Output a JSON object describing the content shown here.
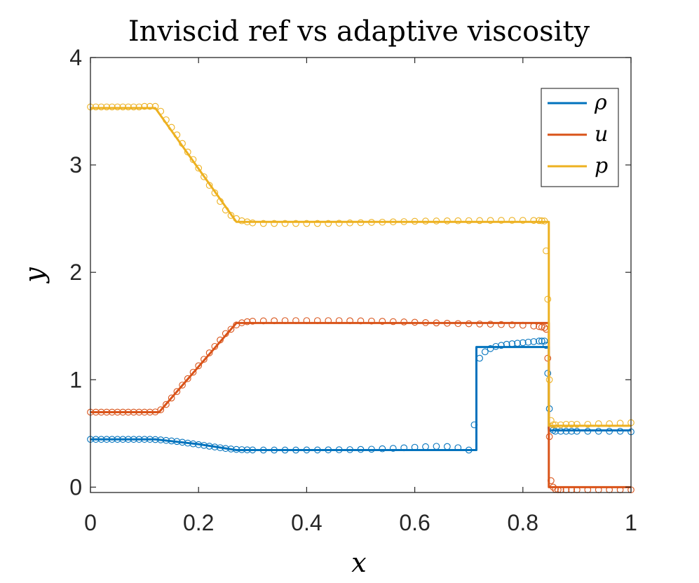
{
  "chart_data": {
    "type": "line",
    "title": "Inviscid ref vs adaptive viscosity",
    "xlabel": "x",
    "ylabel": "y",
    "xlim": [
      0,
      1
    ],
    "ylim": [
      -0.05,
      4
    ],
    "xticks": [
      0,
      0.2,
      0.4,
      0.6,
      0.8,
      1
    ],
    "xtick_labels": [
      "0",
      "0.2",
      "0.4",
      "0.6",
      "0.8",
      "1"
    ],
    "yticks": [
      0,
      1,
      2,
      3,
      4
    ],
    "ytick_labels": [
      "0",
      "1",
      "2",
      "3",
      "4"
    ],
    "grid": false,
    "box": true,
    "legend_position": "top-right",
    "series": [
      {
        "name": "ρ",
        "color": "#0072BD",
        "reference_line": {
          "x": [
            0,
            0.12,
            0.2,
            0.27,
            0.714,
            0.714,
            0.848,
            0.848,
            1
          ],
          "y": [
            0.445,
            0.445,
            0.4,
            0.345,
            0.345,
            1.305,
            1.305,
            0.528,
            0.528
          ]
        },
        "markers": {
          "x": [
            0,
            0.01,
            0.02,
            0.03,
            0.04,
            0.05,
            0.06,
            0.07,
            0.08,
            0.09,
            0.1,
            0.11,
            0.12,
            0.13,
            0.14,
            0.15,
            0.16,
            0.17,
            0.18,
            0.19,
            0.2,
            0.21,
            0.22,
            0.23,
            0.24,
            0.25,
            0.26,
            0.27,
            0.28,
            0.29,
            0.3,
            0.32,
            0.34,
            0.36,
            0.38,
            0.4,
            0.42,
            0.44,
            0.46,
            0.48,
            0.5,
            0.52,
            0.54,
            0.56,
            0.58,
            0.6,
            0.62,
            0.64,
            0.66,
            0.68,
            0.7,
            0.71,
            0.72,
            0.73,
            0.74,
            0.75,
            0.76,
            0.77,
            0.78,
            0.79,
            0.8,
            0.81,
            0.82,
            0.83,
            0.835,
            0.84,
            0.843,
            0.846,
            0.849,
            0.852,
            0.856,
            0.86,
            0.87,
            0.88,
            0.89,
            0.9,
            0.92,
            0.94,
            0.96,
            0.98,
            1
          ],
          "y": [
            0.445,
            0.445,
            0.445,
            0.445,
            0.445,
            0.445,
            0.445,
            0.445,
            0.445,
            0.445,
            0.445,
            0.445,
            0.443,
            0.44,
            0.435,
            0.43,
            0.425,
            0.418,
            0.41,
            0.403,
            0.396,
            0.389,
            0.381,
            0.374,
            0.367,
            0.36,
            0.355,
            0.351,
            0.349,
            0.347,
            0.346,
            0.345,
            0.345,
            0.345,
            0.345,
            0.346,
            0.346,
            0.347,
            0.348,
            0.349,
            0.351,
            0.353,
            0.357,
            0.361,
            0.366,
            0.371,
            0.376,
            0.38,
            0.378,
            0.367,
            0.345,
            0.58,
            1.2,
            1.26,
            1.29,
            1.31,
            1.32,
            1.33,
            1.335,
            1.34,
            1.345,
            1.35,
            1.355,
            1.36,
            1.36,
            1.36,
            1.32,
            1.06,
            0.73,
            0.55,
            0.53,
            0.52,
            0.52,
            0.52,
            0.52,
            0.52,
            0.52,
            0.52,
            0.52,
            0.52,
            0.515
          ]
        }
      },
      {
        "name": "u",
        "color": "#D95319",
        "reference_line": {
          "x": [
            0,
            0.127,
            0.27,
            0.848,
            0.848,
            1
          ],
          "y": [
            0.698,
            0.698,
            1.528,
            1.528,
            0,
            0
          ]
        },
        "markers": {
          "x": [
            0,
            0.01,
            0.02,
            0.03,
            0.04,
            0.05,
            0.06,
            0.07,
            0.08,
            0.09,
            0.1,
            0.11,
            0.12,
            0.13,
            0.14,
            0.15,
            0.16,
            0.17,
            0.18,
            0.19,
            0.2,
            0.21,
            0.22,
            0.23,
            0.24,
            0.25,
            0.26,
            0.27,
            0.28,
            0.29,
            0.3,
            0.32,
            0.34,
            0.36,
            0.38,
            0.4,
            0.42,
            0.44,
            0.46,
            0.48,
            0.5,
            0.52,
            0.54,
            0.56,
            0.58,
            0.6,
            0.62,
            0.64,
            0.66,
            0.68,
            0.7,
            0.72,
            0.74,
            0.76,
            0.78,
            0.8,
            0.82,
            0.83,
            0.835,
            0.84,
            0.843,
            0.846,
            0.849,
            0.852,
            0.856,
            0.86,
            0.865,
            0.87,
            0.88,
            0.89,
            0.9,
            0.92,
            0.94,
            0.96,
            0.98,
            1
          ],
          "y": [
            0.698,
            0.698,
            0.698,
            0.698,
            0.698,
            0.698,
            0.698,
            0.698,
            0.698,
            0.698,
            0.698,
            0.698,
            0.7,
            0.72,
            0.77,
            0.83,
            0.89,
            0.95,
            1.01,
            1.07,
            1.13,
            1.19,
            1.25,
            1.31,
            1.37,
            1.43,
            1.47,
            1.51,
            1.53,
            1.54,
            1.545,
            1.548,
            1.549,
            1.55,
            1.55,
            1.55,
            1.55,
            1.55,
            1.55,
            1.549,
            1.548,
            1.546,
            1.544,
            1.541,
            1.538,
            1.535,
            1.532,
            1.529,
            1.526,
            1.523,
            1.521,
            1.519,
            1.517,
            1.514,
            1.511,
            1.507,
            1.5,
            1.495,
            1.49,
            1.485,
            1.47,
            1.2,
            0.47,
            0.06,
            0.0,
            -0.02,
            -0.025,
            -0.025,
            -0.025,
            -0.025,
            -0.025,
            -0.025,
            -0.025,
            -0.025,
            -0.025,
            -0.025
          ]
        }
      },
      {
        "name": "p",
        "color": "#EDB120",
        "reference_line": {
          "x": [
            0,
            0.12,
            0.27,
            0.848,
            0.848,
            1
          ],
          "y": [
            3.53,
            3.53,
            2.47,
            2.47,
            0.571,
            0.571
          ]
        },
        "markers": {
          "x": [
            0,
            0.01,
            0.02,
            0.03,
            0.04,
            0.05,
            0.06,
            0.07,
            0.08,
            0.09,
            0.1,
            0.11,
            0.12,
            0.13,
            0.14,
            0.15,
            0.16,
            0.17,
            0.18,
            0.19,
            0.2,
            0.21,
            0.22,
            0.23,
            0.24,
            0.25,
            0.26,
            0.27,
            0.28,
            0.29,
            0.3,
            0.32,
            0.34,
            0.36,
            0.38,
            0.4,
            0.42,
            0.44,
            0.46,
            0.48,
            0.5,
            0.52,
            0.54,
            0.56,
            0.58,
            0.6,
            0.62,
            0.64,
            0.66,
            0.68,
            0.7,
            0.72,
            0.74,
            0.76,
            0.78,
            0.8,
            0.82,
            0.83,
            0.835,
            0.84,
            0.843,
            0.846,
            0.849,
            0.852,
            0.856,
            0.86,
            0.87,
            0.88,
            0.89,
            0.9,
            0.92,
            0.94,
            0.96,
            0.98,
            1
          ],
          "y": [
            3.54,
            3.54,
            3.54,
            3.54,
            3.54,
            3.54,
            3.54,
            3.54,
            3.54,
            3.54,
            3.545,
            3.545,
            3.545,
            3.5,
            3.42,
            3.35,
            3.28,
            3.2,
            3.12,
            3.05,
            2.97,
            2.89,
            2.81,
            2.74,
            2.66,
            2.58,
            2.53,
            2.5,
            2.48,
            2.47,
            2.46,
            2.455,
            2.455,
            2.455,
            2.455,
            2.455,
            2.455,
            2.455,
            2.457,
            2.46,
            2.462,
            2.465,
            2.467,
            2.47,
            2.472,
            2.475,
            2.477,
            2.478,
            2.479,
            2.48,
            2.481,
            2.482,
            2.483,
            2.484,
            2.484,
            2.484,
            2.483,
            2.482,
            2.48,
            2.478,
            2.2,
            1.75,
            1.0,
            0.62,
            0.58,
            0.58,
            0.58,
            0.585,
            0.585,
            0.585,
            0.585,
            0.59,
            0.59,
            0.595,
            0.6
          ]
        }
      }
    ]
  }
}
